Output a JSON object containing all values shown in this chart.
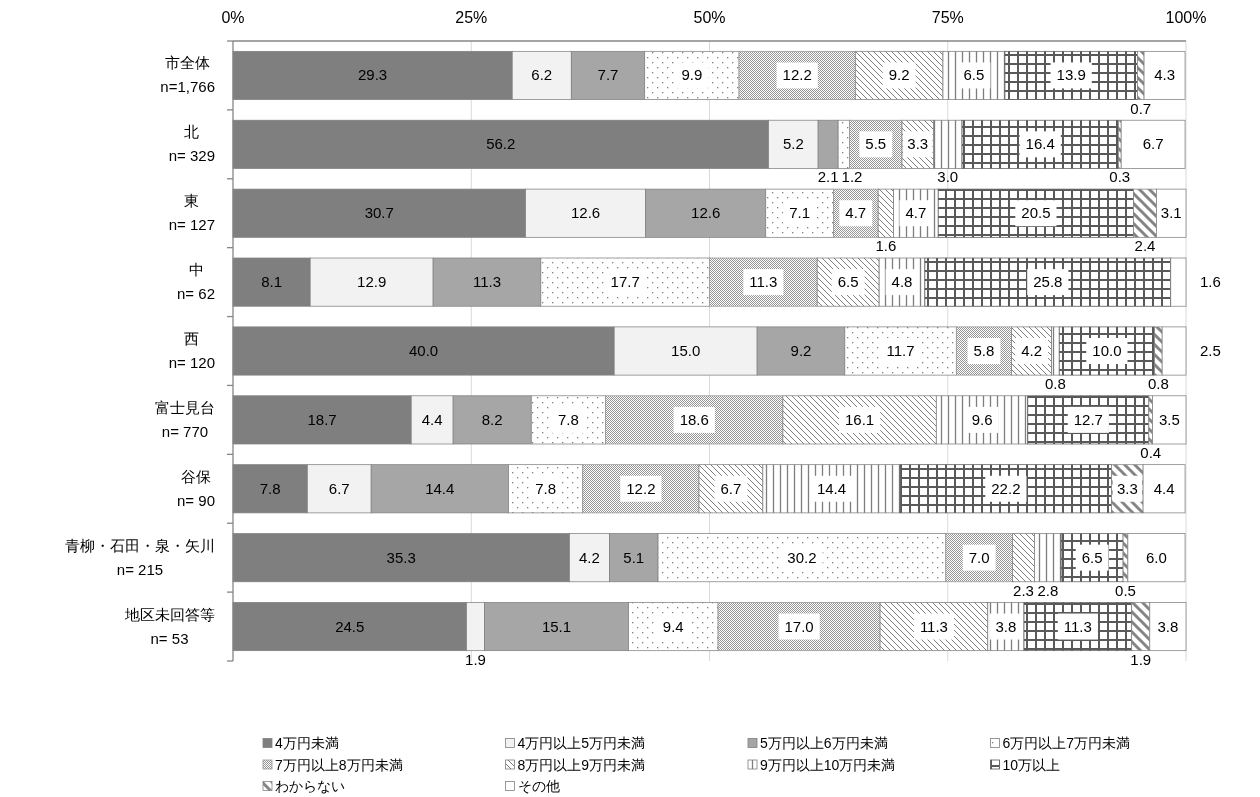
{
  "chart_data": {
    "type": "bar",
    "orientation": "horizontal",
    "stacked": true,
    "categories": [
      "市全体\nn=1,766",
      "北\nn= 329",
      "東\nn= 127",
      "中\nn= 62",
      "西\nn= 120",
      "富士見台\nn= 770",
      "谷保\nn= 90",
      "青柳・石田・泉・矢川\nn= 215",
      "地区未回答等\nn= 53"
    ],
    "xlim": [
      0,
      100
    ],
    "xticks": [
      {
        "value": 0,
        "label": "0%"
      },
      {
        "value": 25,
        "label": "25%"
      },
      {
        "value": 50,
        "label": "50%"
      },
      {
        "value": 75,
        "label": "75%"
      },
      {
        "value": 100,
        "label": "100%"
      }
    ],
    "grid": "x",
    "legend": "bottom",
    "series": [
      {
        "name": "4万円未満",
        "color": "#7f7f7f",
        "values": [
          29.3,
          56.2,
          30.7,
          8.1,
          40.0,
          18.7,
          7.8,
          35.3,
          24.5
        ],
        "value_labels": [
          "29.3",
          "56.2",
          "30.7",
          "8.1",
          "40.0",
          "18.7",
          "7.8",
          "35.3",
          "24.5"
        ]
      },
      {
        "name": "4万円以上5万円未満",
        "color": "#f2f2f2",
        "values": [
          6.2,
          5.2,
          12.6,
          12.9,
          15.0,
          4.4,
          6.7,
          4.2,
          1.9
        ],
        "value_labels": [
          "6.2",
          "5.2",
          "12.6",
          "12.9",
          "15.0",
          "4.4",
          "6.7",
          "4.2",
          "1.9"
        ]
      },
      {
        "name": "5万円以上6万円未満",
        "color": "#a6a6a6",
        "values": [
          7.7,
          2.1,
          12.6,
          11.3,
          9.2,
          8.2,
          14.4,
          5.1,
          15.1
        ],
        "value_labels": [
          "7.7",
          "2.1",
          "12.6",
          "11.3",
          "9.2",
          "8.2",
          "14.4",
          "5.1",
          "15.1"
        ]
      },
      {
        "name": "6万円以上7万円未満",
        "color": "#808080",
        "values": [
          9.9,
          1.2,
          7.1,
          17.7,
          11.7,
          7.8,
          7.8,
          30.2,
          9.4
        ],
        "value_labels": [
          "9.9",
          "1.2",
          "7.1",
          "17.7",
          "11.7",
          "7.8",
          "7.8",
          "30.2",
          "9.4"
        ]
      },
      {
        "name": "7万円以上8万円未満",
        "color": "#969696",
        "values": [
          12.2,
          5.5,
          4.7,
          11.3,
          5.8,
          18.6,
          12.2,
          7.0,
          17.0
        ],
        "value_labels": [
          "12.2",
          "5.5",
          "4.7",
          "11.3",
          "5.8",
          "18.6",
          "12.2",
          "7.0",
          "17.0"
        ]
      },
      {
        "name": "8万円以上9万円未満",
        "color": "#7f7f7f",
        "values": [
          9.2,
          3.3,
          1.6,
          6.5,
          4.2,
          16.1,
          6.7,
          2.3,
          11.3
        ],
        "value_labels": [
          "9.2",
          "3.3",
          "1.6",
          "6.5",
          "4.2",
          "16.1",
          "6.7",
          "2.3",
          "11.3"
        ]
      },
      {
        "name": "9万円以上10万円未満",
        "color": "#7e7e7e",
        "values": [
          6.5,
          3.0,
          4.7,
          4.8,
          0.8,
          9.6,
          14.4,
          2.8,
          3.8
        ],
        "value_labels": [
          "6.5",
          "3.0",
          "4.7",
          "4.8",
          "0.8",
          "9.6",
          "14.4",
          "2.8",
          "3.8"
        ]
      },
      {
        "name": "10万以上",
        "color": "#595959",
        "values": [
          13.9,
          16.4,
          20.5,
          25.8,
          10.0,
          12.7,
          22.2,
          6.5,
          11.3
        ],
        "value_labels": [
          "13.9",
          "16.4",
          "20.5",
          "25.8",
          "10.0",
          "12.7",
          "22.2",
          "6.5",
          "11.3"
        ]
      },
      {
        "name": "わからない",
        "color": "#858585",
        "values": [
          0.7,
          0.3,
          2.4,
          null,
          0.8,
          0.4,
          3.3,
          0.5,
          1.9
        ],
        "value_labels": [
          "0.7",
          "0.3",
          "2.4",
          null,
          "0.8",
          "0.4",
          "3.3",
          "0.5",
          "1.9"
        ]
      },
      {
        "name": "その他",
        "color": "#ffffff",
        "values": [
          4.3,
          6.7,
          3.1,
          1.6,
          2.5,
          3.5,
          4.4,
          6.0,
          3.8
        ],
        "value_labels": [
          "4.3",
          "6.7",
          "3.1",
          "1.6",
          "2.5",
          "3.5",
          "4.4",
          "6.0",
          "3.8"
        ]
      }
    ]
  }
}
